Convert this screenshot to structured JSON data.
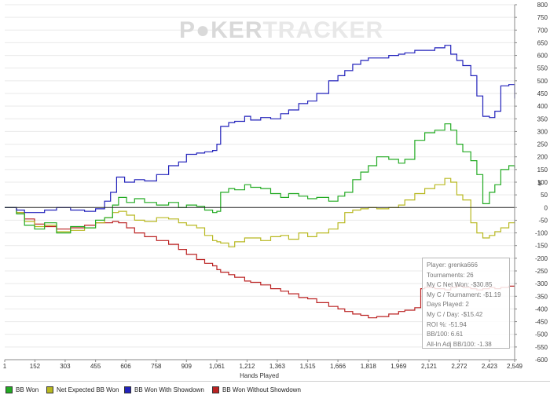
{
  "watermark": {
    "left": "P",
    "mid": "KER",
    "right": "TRACKER"
  },
  "chart_data": {
    "type": "line",
    "title": "",
    "xlabel": "Hands Played",
    "ylabel": "$",
    "xlim": [
      1,
      2549
    ],
    "ylim": [
      -600,
      800
    ],
    "x_ticks": [
      1,
      152,
      303,
      455,
      606,
      758,
      909,
      1061,
      1212,
      1363,
      1515,
      1666,
      1818,
      1969,
      2121,
      2272,
      2423,
      2549
    ],
    "x_tick_labels": [
      "1",
      "152",
      "303",
      "455",
      "606",
      "758",
      "909",
      "1,061",
      "1,212",
      "1,363",
      "1,515",
      "1,666",
      "1,818",
      "1,969",
      "2,121",
      "2,272",
      "2,423",
      "2,549"
    ],
    "y_ticks": [
      800,
      750,
      700,
      650,
      600,
      550,
      500,
      450,
      400,
      350,
      300,
      250,
      200,
      150,
      100,
      50,
      0,
      -50,
      -100,
      -150,
      -200,
      -250,
      -300,
      -350,
      -400,
      -450,
      -500,
      -550,
      -600
    ],
    "y_tick_labels": [
      "800",
      "750",
      "700",
      "650",
      "600",
      "550",
      "500",
      "450",
      "400",
      "350",
      "300",
      "250",
      "200",
      "150",
      "100",
      "50",
      "0",
      "-50",
      "-100",
      "-150",
      "-200",
      "-250",
      "-300",
      "-350",
      "-400",
      "-450",
      "-500",
      "-550",
      "-600"
    ],
    "series": [
      {
        "name": "BB Won",
        "color": "#22aa22",
        "points": [
          [
            1,
            0
          ],
          [
            60,
            -25
          ],
          [
            100,
            -70
          ],
          [
            150,
            -85
          ],
          [
            200,
            -60
          ],
          [
            260,
            -100
          ],
          [
            330,
            -75
          ],
          [
            400,
            -80
          ],
          [
            455,
            -50
          ],
          [
            500,
            -40
          ],
          [
            540,
            10
          ],
          [
            570,
            40
          ],
          [
            610,
            20
          ],
          [
            650,
            35
          ],
          [
            700,
            20
          ],
          [
            760,
            10
          ],
          [
            820,
            20
          ],
          [
            870,
            0
          ],
          [
            909,
            10
          ],
          [
            960,
            5
          ],
          [
            1000,
            -10
          ],
          [
            1040,
            -20
          ],
          [
            1061,
            -15
          ],
          [
            1080,
            60
          ],
          [
            1120,
            75
          ],
          [
            1150,
            70
          ],
          [
            1200,
            90
          ],
          [
            1230,
            80
          ],
          [
            1280,
            75
          ],
          [
            1330,
            55
          ],
          [
            1380,
            40
          ],
          [
            1420,
            55
          ],
          [
            1470,
            45
          ],
          [
            1515,
            35
          ],
          [
            1560,
            40
          ],
          [
            1620,
            25
          ],
          [
            1666,
            45
          ],
          [
            1700,
            60
          ],
          [
            1740,
            110
          ],
          [
            1780,
            140
          ],
          [
            1818,
            165
          ],
          [
            1860,
            200
          ],
          [
            1920,
            190
          ],
          [
            1969,
            175
          ],
          [
            2000,
            190
          ],
          [
            2050,
            265
          ],
          [
            2100,
            295
          ],
          [
            2150,
            305
          ],
          [
            2200,
            330
          ],
          [
            2230,
            305
          ],
          [
            2260,
            250
          ],
          [
            2290,
            220
          ],
          [
            2330,
            185
          ],
          [
            2360,
            130
          ],
          [
            2390,
            15
          ],
          [
            2423,
            60
          ],
          [
            2450,
            90
          ],
          [
            2480,
            150
          ],
          [
            2520,
            165
          ],
          [
            2549,
            155
          ]
        ]
      },
      {
        "name": "Net Expected BB Won",
        "color": "#b8b820",
        "points": [
          [
            1,
            0
          ],
          [
            60,
            -20
          ],
          [
            100,
            -55
          ],
          [
            150,
            -75
          ],
          [
            200,
            -70
          ],
          [
            260,
            -95
          ],
          [
            330,
            -90
          ],
          [
            400,
            -80
          ],
          [
            455,
            -60
          ],
          [
            500,
            -40
          ],
          [
            540,
            -20
          ],
          [
            570,
            -15
          ],
          [
            610,
            -30
          ],
          [
            650,
            -50
          ],
          [
            700,
            -55
          ],
          [
            760,
            -40
          ],
          [
            820,
            -45
          ],
          [
            870,
            -60
          ],
          [
            909,
            -70
          ],
          [
            960,
            -80
          ],
          [
            1000,
            -110
          ],
          [
            1040,
            -130
          ],
          [
            1061,
            -135
          ],
          [
            1080,
            -140
          ],
          [
            1120,
            -155
          ],
          [
            1150,
            -135
          ],
          [
            1200,
            -120
          ],
          [
            1230,
            -120
          ],
          [
            1280,
            -130
          ],
          [
            1330,
            -115
          ],
          [
            1380,
            -110
          ],
          [
            1420,
            -125
          ],
          [
            1470,
            -100
          ],
          [
            1515,
            -115
          ],
          [
            1560,
            -100
          ],
          [
            1620,
            -85
          ],
          [
            1666,
            -60
          ],
          [
            1700,
            -20
          ],
          [
            1740,
            -10
          ],
          [
            1780,
            -5
          ],
          [
            1818,
            0
          ],
          [
            1860,
            -5
          ],
          [
            1920,
            0
          ],
          [
            1969,
            10
          ],
          [
            2000,
            30
          ],
          [
            2050,
            55
          ],
          [
            2100,
            75
          ],
          [
            2150,
            90
          ],
          [
            2200,
            115
          ],
          [
            2230,
            100
          ],
          [
            2260,
            50
          ],
          [
            2290,
            30
          ],
          [
            2330,
            -60
          ],
          [
            2360,
            -100
          ],
          [
            2390,
            -120
          ],
          [
            2423,
            -110
          ],
          [
            2450,
            -95
          ],
          [
            2480,
            -80
          ],
          [
            2520,
            -60
          ],
          [
            2549,
            -55
          ]
        ]
      },
      {
        "name": "BB Won With Showdown",
        "color": "#2222bb",
        "points": [
          [
            1,
            0
          ],
          [
            60,
            -10
          ],
          [
            100,
            -20
          ],
          [
            150,
            -20
          ],
          [
            200,
            -10
          ],
          [
            260,
            0
          ],
          [
            330,
            -10
          ],
          [
            400,
            -15
          ],
          [
            455,
            -5
          ],
          [
            500,
            25
          ],
          [
            530,
            60
          ],
          [
            560,
            120
          ],
          [
            600,
            100
          ],
          [
            650,
            110
          ],
          [
            700,
            105
          ],
          [
            760,
            130
          ],
          [
            820,
            165
          ],
          [
            870,
            180
          ],
          [
            909,
            210
          ],
          [
            960,
            215
          ],
          [
            1000,
            220
          ],
          [
            1040,
            225
          ],
          [
            1061,
            250
          ],
          [
            1080,
            320
          ],
          [
            1120,
            335
          ],
          [
            1150,
            340
          ],
          [
            1200,
            360
          ],
          [
            1230,
            345
          ],
          [
            1280,
            355
          ],
          [
            1330,
            350
          ],
          [
            1380,
            370
          ],
          [
            1420,
            385
          ],
          [
            1470,
            410
          ],
          [
            1515,
            420
          ],
          [
            1560,
            450
          ],
          [
            1620,
            500
          ],
          [
            1666,
            520
          ],
          [
            1700,
            540
          ],
          [
            1740,
            565
          ],
          [
            1780,
            580
          ],
          [
            1818,
            590
          ],
          [
            1860,
            590
          ],
          [
            1920,
            600
          ],
          [
            1969,
            605
          ],
          [
            2000,
            610
          ],
          [
            2050,
            620
          ],
          [
            2100,
            620
          ],
          [
            2150,
            630
          ],
          [
            2200,
            640
          ],
          [
            2230,
            605
          ],
          [
            2260,
            580
          ],
          [
            2290,
            560
          ],
          [
            2330,
            520
          ],
          [
            2360,
            440
          ],
          [
            2390,
            360
          ],
          [
            2423,
            355
          ],
          [
            2450,
            380
          ],
          [
            2480,
            480
          ],
          [
            2520,
            485
          ],
          [
            2549,
            430
          ]
        ]
      },
      {
        "name": "BB Won Without Showdown",
        "color": "#bb2222",
        "points": [
          [
            1,
            0
          ],
          [
            60,
            -20
          ],
          [
            100,
            -45
          ],
          [
            150,
            -65
          ],
          [
            200,
            -75
          ],
          [
            260,
            -85
          ],
          [
            330,
            -80
          ],
          [
            400,
            -70
          ],
          [
            455,
            -60
          ],
          [
            500,
            -60
          ],
          [
            540,
            -55
          ],
          [
            570,
            -60
          ],
          [
            610,
            -80
          ],
          [
            650,
            -100
          ],
          [
            700,
            -115
          ],
          [
            760,
            -130
          ],
          [
            820,
            -145
          ],
          [
            870,
            -165
          ],
          [
            909,
            -185
          ],
          [
            960,
            -205
          ],
          [
            1000,
            -220
          ],
          [
            1040,
            -230
          ],
          [
            1061,
            -245
          ],
          [
            1080,
            -255
          ],
          [
            1120,
            -265
          ],
          [
            1150,
            -275
          ],
          [
            1200,
            -290
          ],
          [
            1230,
            -295
          ],
          [
            1280,
            -305
          ],
          [
            1330,
            -320
          ],
          [
            1380,
            -330
          ],
          [
            1420,
            -340
          ],
          [
            1470,
            -355
          ],
          [
            1515,
            -360
          ],
          [
            1560,
            -375
          ],
          [
            1620,
            -390
          ],
          [
            1666,
            -400
          ],
          [
            1700,
            -410
          ],
          [
            1740,
            -420
          ],
          [
            1780,
            -425
          ],
          [
            1818,
            -435
          ],
          [
            1860,
            -430
          ],
          [
            1920,
            -420
          ],
          [
            1969,
            -410
          ],
          [
            2000,
            -405
          ],
          [
            2050,
            -395
          ],
          [
            2080,
            -320
          ],
          [
            2100,
            -315
          ],
          [
            2150,
            -320
          ],
          [
            2200,
            -325
          ],
          [
            2230,
            -315
          ],
          [
            2260,
            -310
          ],
          [
            2290,
            -315
          ],
          [
            2330,
            -320
          ],
          [
            2360,
            -325
          ],
          [
            2390,
            -320
          ],
          [
            2423,
            -315
          ],
          [
            2450,
            -320
          ],
          [
            2480,
            -315
          ],
          [
            2520,
            -310
          ],
          [
            2549,
            -310
          ]
        ]
      }
    ]
  },
  "stats": [
    {
      "label": "Player",
      "value": "grenka666"
    },
    {
      "label": "Tournaments",
      "value": "26"
    },
    {
      "label": "My C Net Won",
      "value": "-$30.85"
    },
    {
      "label": "My C / Tournament",
      "value": "-$1.19"
    },
    {
      "label": "Days Played",
      "value": "2"
    },
    {
      "label": "My C / Day",
      "value": "-$15.42"
    },
    {
      "label": "ROI %",
      "value": "-51.94"
    },
    {
      "label": "BB/100",
      "value": "6.61"
    },
    {
      "label": "All-In Adj BB/100",
      "value": "-1.38"
    }
  ]
}
